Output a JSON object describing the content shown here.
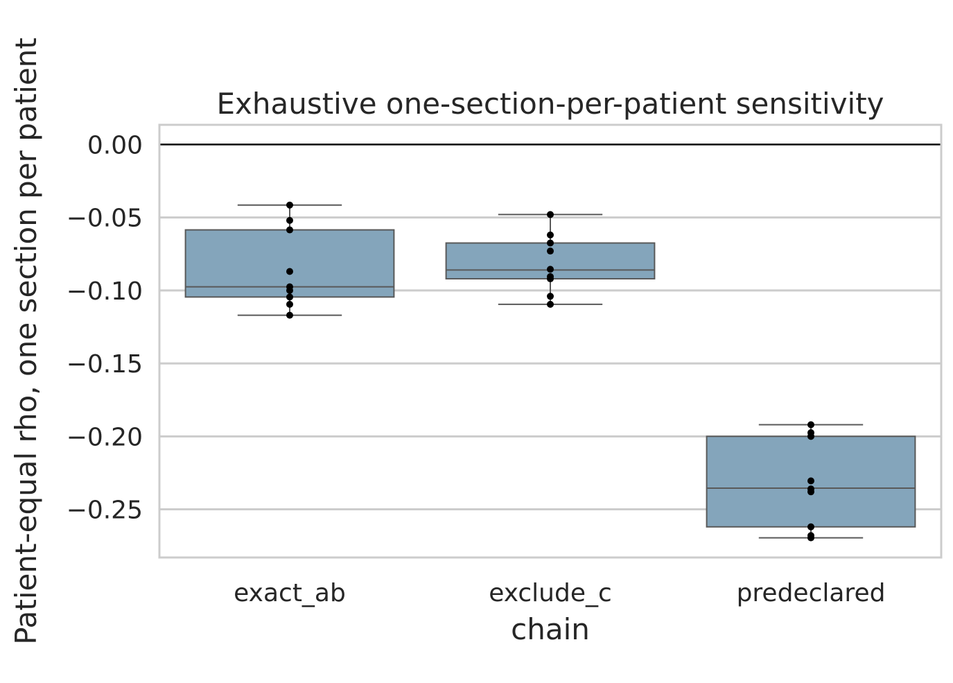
{
  "chart_data": {
    "type": "box",
    "title": "Exhaustive one-section-per-patient sensitivity",
    "xlabel": "chain",
    "ylabel": "Patient-equal rho, one section per patient",
    "categories": [
      "exact_ab",
      "exclude_c",
      "predeclared"
    ],
    "ylim": [
      -0.283,
      0.0135
    ],
    "yticks": [
      0.0,
      -0.05,
      -0.1,
      -0.15,
      -0.2,
      -0.25
    ],
    "ytick_labels": [
      "0.00",
      "−0.05",
      "−0.10",
      "−0.15",
      "−0.20",
      "−0.25"
    ],
    "reference_line": 0.0,
    "grid": true,
    "box_color": "#84a5bb",
    "box_edge_color": "#595959",
    "point_color": "#000000",
    "boxes": [
      {
        "category": "exact_ab",
        "whisker_low": -0.117,
        "q1": -0.1045,
        "median": -0.0975,
        "q3": -0.0585,
        "whisker_high": -0.0415,
        "points": [
          -0.0415,
          -0.052,
          -0.0585,
          -0.087,
          -0.0975,
          -0.1,
          -0.1045,
          -0.1095,
          -0.117
        ]
      },
      {
        "category": "exclude_c",
        "whisker_low": -0.1095,
        "q1": -0.092,
        "median": -0.086,
        "q3": -0.0675,
        "whisker_high": -0.048,
        "points": [
          -0.048,
          -0.062,
          -0.0675,
          -0.073,
          -0.0855,
          -0.0905,
          -0.092,
          -0.104,
          -0.1095
        ]
      },
      {
        "category": "predeclared",
        "whisker_low": -0.2695,
        "q1": -0.262,
        "median": -0.2355,
        "q3": -0.2,
        "whisker_high": -0.192,
        "points": [
          -0.192,
          -0.1975,
          -0.2,
          -0.2305,
          -0.236,
          -0.238,
          -0.262,
          -0.268,
          -0.2695
        ]
      }
    ]
  }
}
